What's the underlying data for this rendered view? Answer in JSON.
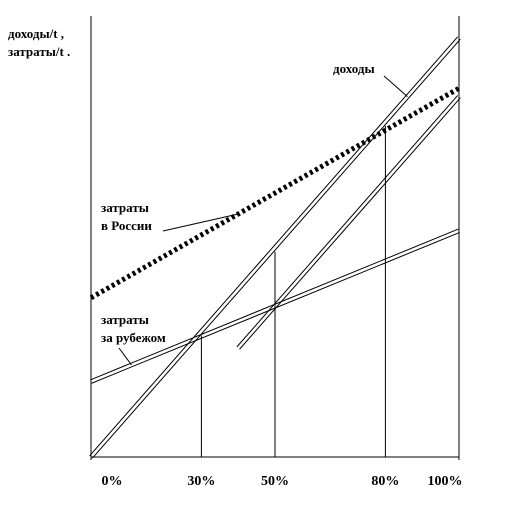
{
  "chart_data": {
    "type": "line",
    "ylabel_lines": [
      "доходы/t ,",
      "затраты/t ."
    ],
    "x_ticks": [
      "0%",
      "30%",
      "50%",
      "80%",
      "100%"
    ],
    "x_values": [
      0,
      30,
      50,
      80,
      100
    ],
    "xlim": [
      0,
      100
    ],
    "ylim": [
      0,
      100
    ],
    "grid": false,
    "series": [
      {
        "key": "dohody",
        "name": "доходы",
        "style": "double-line",
        "color": "#000000",
        "x": [
          0,
          100
        ],
        "y": [
          0,
          100
        ]
      },
      {
        "key": "dohody2",
        "style": "double-line",
        "color": "#000000",
        "x": [
          40,
          100
        ],
        "y": [
          26,
          86
        ]
      },
      {
        "key": "rus",
        "name": "затраты в России",
        "style": "dotted-bold",
        "color": "#000000",
        "x": [
          0,
          100
        ],
        "y": [
          38,
          88
        ]
      },
      {
        "key": "abroad",
        "name": "затраты за рубежом",
        "style": "double-line",
        "color": "#000000",
        "x": [
          0,
          100
        ],
        "y": [
          18,
          54
        ]
      }
    ],
    "vertical_markers": [
      {
        "x": 30,
        "y_top": 29
      },
      {
        "x": 50,
        "y_top": 49
      },
      {
        "x": 80,
        "y_top": 79
      }
    ],
    "annotations": [
      {
        "key": "dohody",
        "lines": [
          "доходы"
        ]
      },
      {
        "key": "rus",
        "lines": [
          "затраты",
          "в России"
        ]
      },
      {
        "key": "abroad",
        "lines": [
          "затраты",
          "за рубежом"
        ]
      }
    ]
  }
}
